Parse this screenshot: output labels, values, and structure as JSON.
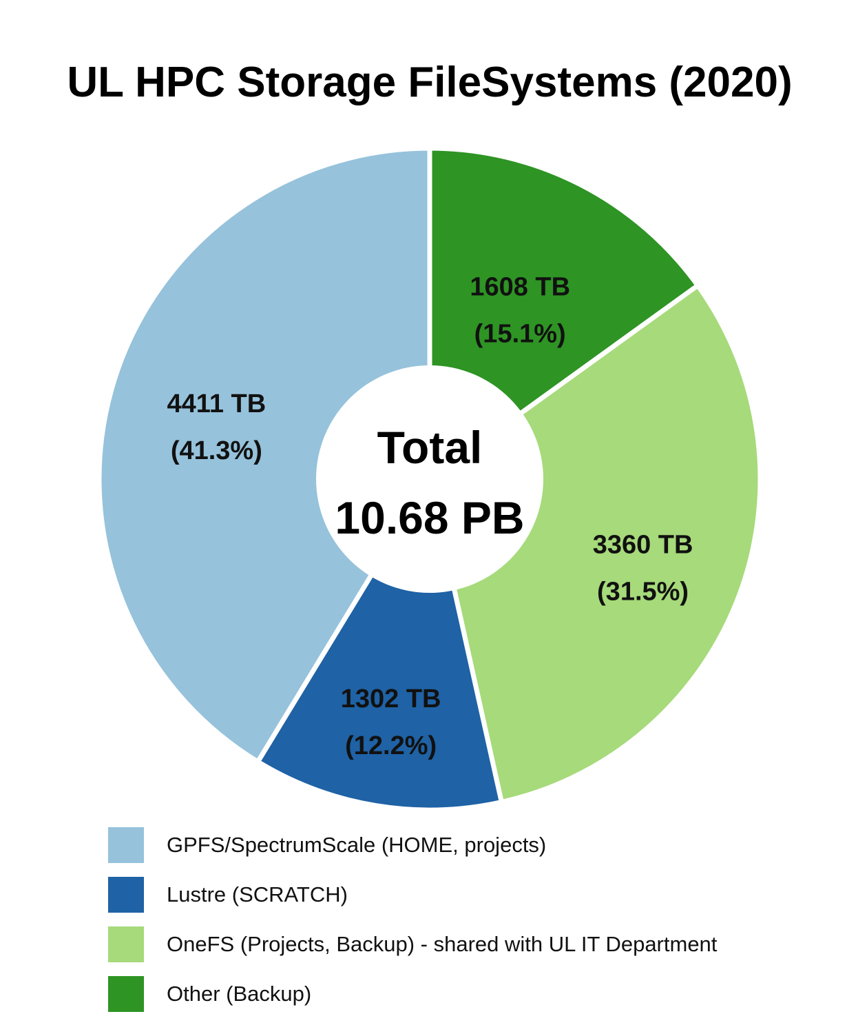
{
  "chart_data": {
    "type": "pie",
    "title": "UL HPC Storage FileSystems (2020)",
    "center_text": [
      "Total",
      "10.68 PB"
    ],
    "unit": "TB",
    "series": [
      {
        "name": "GPFS/SpectrumScale (HOME, projects)",
        "value": 4411,
        "percent": 41.3,
        "value_label": "4411 TB",
        "percent_label": "(41.3%)",
        "color": "#96c2db"
      },
      {
        "name": "Lustre (SCRATCH)",
        "value": 1302,
        "percent": 12.2,
        "value_label": "1302 TB",
        "percent_label": "(12.2%)",
        "color": "#1f62a5"
      },
      {
        "name": "OneFS (Projects, Backup) - shared with UL IT Department",
        "value": 3360,
        "percent": 31.5,
        "value_label": "3360 TB",
        "percent_label": "(31.5%)",
        "color": "#a6da7a"
      },
      {
        "name": "Other (Backup)",
        "value": 1608,
        "percent": 15.1,
        "value_label": "1608 TB",
        "percent_label": "(15.1%)",
        "color": "#2e9424"
      }
    ],
    "legend_position": "bottom"
  }
}
